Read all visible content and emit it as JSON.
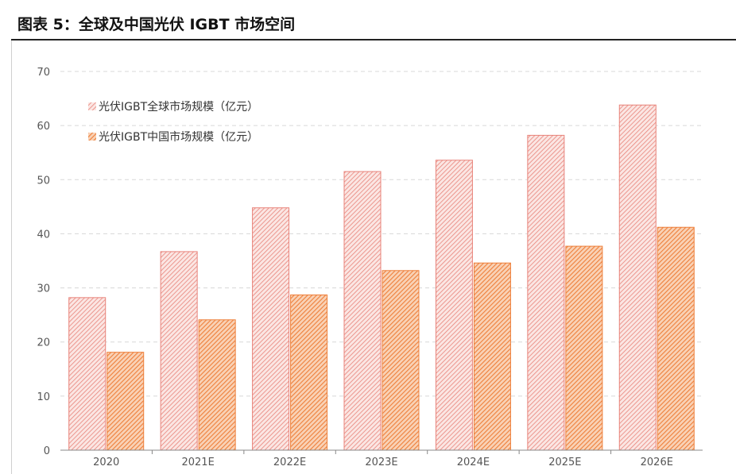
{
  "header": {
    "title": "图表 5：全球及中国光伏 IGBT 市场空间"
  },
  "colors": {
    "global_series": "#e8837a",
    "china_series": "#ee7f3a",
    "grid": "#d8d8d8",
    "axis": "#888888"
  },
  "chart_data": {
    "type": "bar",
    "categories": [
      "2020",
      "2021E",
      "2022E",
      "2023E",
      "2024E",
      "2025E",
      "2026E"
    ],
    "series": [
      {
        "name": "光伏IGBT全球市场规模（亿元）",
        "values": [
          28.2,
          36.7,
          44.8,
          51.5,
          53.6,
          58.2,
          63.8
        ]
      },
      {
        "name": "光伏IGBT中国市场规模（亿元）",
        "values": [
          18.1,
          24.1,
          28.7,
          33.2,
          34.6,
          37.7,
          41.2
        ]
      }
    ],
    "ylim": [
      0,
      70
    ],
    "yticks": [
      "0",
      "10",
      "20",
      "30",
      "40",
      "50",
      "60",
      "70"
    ],
    "title": "",
    "xlabel": "",
    "ylabel": "",
    "grid": true,
    "legend_position": "top-left"
  }
}
